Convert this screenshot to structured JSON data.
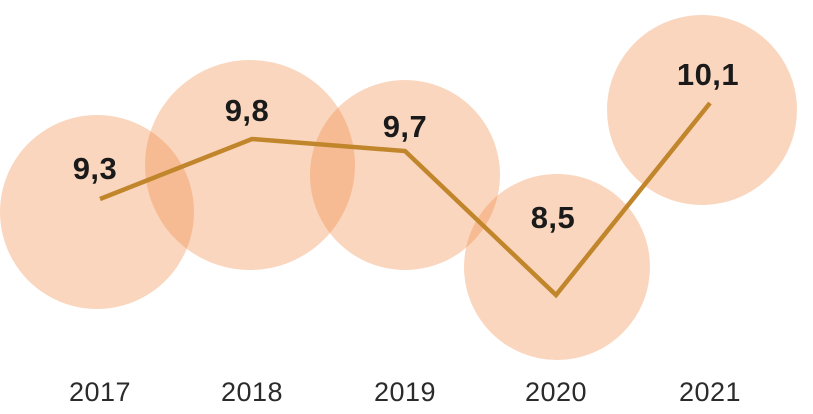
{
  "chart_data": {
    "type": "line",
    "categories": [
      "2017",
      "2018",
      "2019",
      "2020",
      "2021"
    ],
    "values": [
      9.3,
      9.8,
      9.7,
      8.5,
      10.1
    ],
    "value_labels": [
      "9,3",
      "9,8",
      "9,7",
      "8,5",
      "10,1"
    ],
    "decimal_separator": ",",
    "title": "",
    "xlabel": "",
    "ylabel": "",
    "ylim": [
      8.0,
      10.6
    ],
    "grid": false,
    "legend": "none",
    "marker_style": "large-translucent-bubble",
    "colors": {
      "line": "#C1862B",
      "bubble": "#F08A45",
      "bubble_opacity": 0.35,
      "value_label": "#1A1A1A",
      "year_label": "#2B2B2B",
      "background": "#FFFFFF"
    }
  }
}
